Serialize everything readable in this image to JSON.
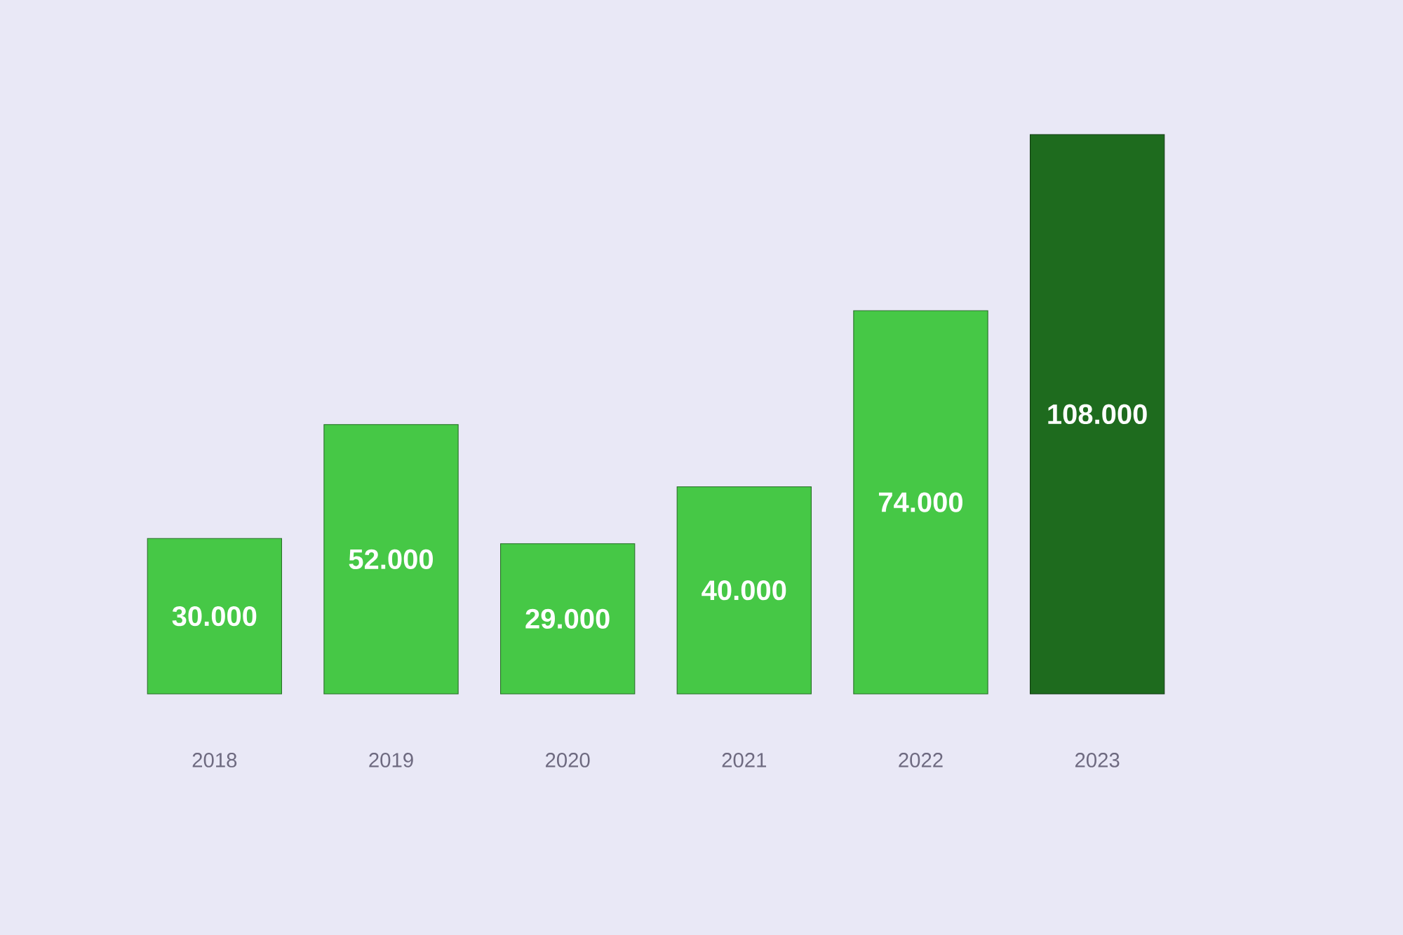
{
  "chart_data": {
    "type": "bar",
    "categories": [
      "2018",
      "2019",
      "2020",
      "2021",
      "2022",
      "2023"
    ],
    "values": [
      30000,
      52000,
      29000,
      40000,
      74000,
      108000
    ],
    "colors": [
      "#46c846",
      "#46c846",
      "#46c846",
      "#46c846",
      "#46c846",
      "#1e6b1e"
    ],
    "value_labels": [
      "30.000",
      "52.000",
      "29.000",
      "40.000",
      "74.000",
      "108.000"
    ],
    "tick_labels": "x"
  }
}
